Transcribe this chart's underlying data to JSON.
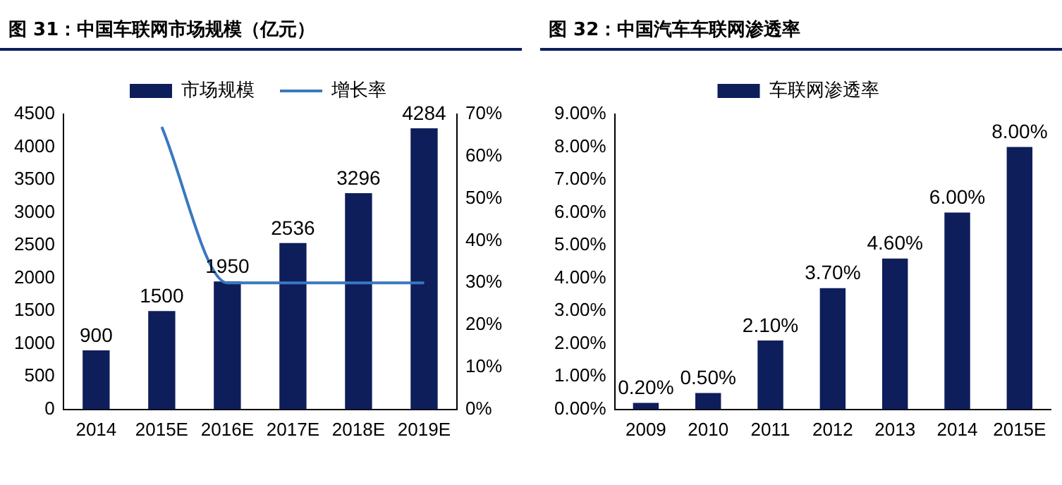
{
  "chart_data": [
    {
      "type": "bar",
      "title": "图 31：中国车联网市场规模（亿元）",
      "categories": [
        "2014",
        "2015E",
        "2016E",
        "2017E",
        "2018E",
        "2019E"
      ],
      "series": [
        {
          "name": "市场规模",
          "type": "bar",
          "color": "#0e1e5b",
          "values": [
            900,
            1500,
            1950,
            2536,
            3296,
            4284
          ],
          "value_labels": [
            "900",
            "1500",
            "1950",
            "2536",
            "3296",
            "4284"
          ]
        },
        {
          "name": "增长率",
          "type": "line",
          "axis": "y2",
          "color": "#3a78c0",
          "values": [
            null,
            67,
            30,
            30,
            30,
            30
          ]
        }
      ],
      "ylim": [
        0,
        4500
      ],
      "yticks": [
        0,
        500,
        1000,
        1500,
        2000,
        2500,
        3000,
        3500,
        4000,
        4500
      ],
      "y2lim": [
        0,
        70
      ],
      "y2ticks": [
        {
          "value": 0,
          "label": "0%"
        },
        {
          "value": 10,
          "label": "10%"
        },
        {
          "value": 20,
          "label": "20%"
        },
        {
          "value": 30,
          "label": "30%"
        },
        {
          "value": 40,
          "label": "40%"
        },
        {
          "value": 50,
          "label": "50%"
        },
        {
          "value": 60,
          "label": "60%"
        },
        {
          "value": 70,
          "label": "70%"
        }
      ],
      "grid": false,
      "legend": "top",
      "marker": "none"
    },
    {
      "type": "bar",
      "title": "图 32：中国汽车车联网渗透率",
      "categories": [
        "2009",
        "2010",
        "2011",
        "2012",
        "2013",
        "2014",
        "2015E"
      ],
      "series": [
        {
          "name": "车联网渗透率",
          "color": "#0e1e5b",
          "values": [
            0.2,
            0.5,
            2.1,
            3.7,
            4.6,
            6.0,
            8.0
          ],
          "value_labels": [
            "0.20%",
            "0.50%",
            "2.10%",
            "3.70%",
            "4.60%",
            "6.00%",
            "8.00%"
          ]
        }
      ],
      "ylim": [
        0,
        9
      ],
      "yticks": [
        {
          "value": 0,
          "label": "0.00%"
        },
        {
          "value": 1,
          "label": "1.00%"
        },
        {
          "value": 2,
          "label": "2.00%"
        },
        {
          "value": 3,
          "label": "3.00%"
        },
        {
          "value": 4,
          "label": "4.00%"
        },
        {
          "value": 5,
          "label": "5.00%"
        },
        {
          "value": 6,
          "label": "6.00%"
        },
        {
          "value": 7,
          "label": "7.00%"
        },
        {
          "value": 8,
          "label": "8.00%"
        },
        {
          "value": 9,
          "label": "9.00%"
        }
      ],
      "grid": false,
      "legend": "top"
    }
  ]
}
